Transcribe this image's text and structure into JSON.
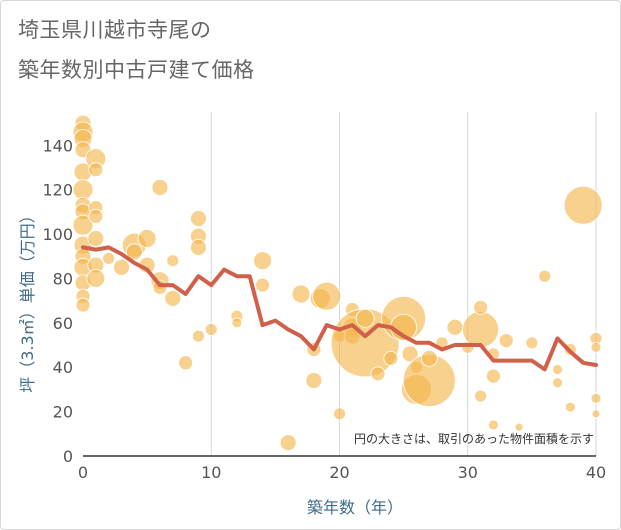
{
  "title_line1": "埼玉県川越市寺尾の",
  "title_line2": "築年数別中古戸建て価格",
  "chart_data": {
    "type": "scatter",
    "xlabel": "築年数（年）",
    "ylabel": "坪（3.3㎡）単価（万円）",
    "xlim": [
      0,
      40
    ],
    "ylim": [
      0,
      155
    ],
    "xticks": [
      0,
      10,
      20,
      30,
      40
    ],
    "yticks": [
      0,
      20,
      40,
      60,
      80,
      100,
      120,
      140
    ],
    "grid": true,
    "annotation": "円の大きさは、取引のあった物件面積を示す",
    "colors": {
      "bubble": "#f3b44a",
      "line": "#d0604a",
      "grid": "#d0d7de"
    },
    "bubbles": [
      {
        "x": 0,
        "y": 150,
        "s": 8
      },
      {
        "x": 0,
        "y": 146,
        "s": 10
      },
      {
        "x": 0,
        "y": 143,
        "s": 9
      },
      {
        "x": 0,
        "y": 138,
        "s": 8
      },
      {
        "x": 0,
        "y": 128,
        "s": 9
      },
      {
        "x": 0,
        "y": 120,
        "s": 10
      },
      {
        "x": 0,
        "y": 113,
        "s": 8
      },
      {
        "x": 0,
        "y": 110,
        "s": 8
      },
      {
        "x": 0,
        "y": 104,
        "s": 10
      },
      {
        "x": 0,
        "y": 95,
        "s": 9
      },
      {
        "x": 0,
        "y": 90,
        "s": 8
      },
      {
        "x": 0,
        "y": 85,
        "s": 9
      },
      {
        "x": 0,
        "y": 78,
        "s": 8
      },
      {
        "x": 0,
        "y": 72,
        "s": 7
      },
      {
        "x": 0,
        "y": 68,
        "s": 7
      },
      {
        "x": 1,
        "y": 134,
        "s": 10
      },
      {
        "x": 1,
        "y": 129,
        "s": 7
      },
      {
        "x": 1,
        "y": 112,
        "s": 7
      },
      {
        "x": 1,
        "y": 108,
        "s": 7
      },
      {
        "x": 1,
        "y": 98,
        "s": 8
      },
      {
        "x": 1,
        "y": 86,
        "s": 8
      },
      {
        "x": 1,
        "y": 80,
        "s": 9
      },
      {
        "x": 2,
        "y": 89,
        "s": 6
      },
      {
        "x": 3,
        "y": 85,
        "s": 8
      },
      {
        "x": 4,
        "y": 95,
        "s": 12
      },
      {
        "x": 4,
        "y": 92,
        "s": 8
      },
      {
        "x": 5,
        "y": 98,
        "s": 9
      },
      {
        "x": 5,
        "y": 86,
        "s": 8
      },
      {
        "x": 6,
        "y": 121,
        "s": 8
      },
      {
        "x": 6,
        "y": 79,
        "s": 9
      },
      {
        "x": 6,
        "y": 76,
        "s": 7
      },
      {
        "x": 7,
        "y": 71,
        "s": 8
      },
      {
        "x": 7,
        "y": 88,
        "s": 6
      },
      {
        "x": 8,
        "y": 42,
        "s": 7
      },
      {
        "x": 9,
        "y": 107,
        "s": 8
      },
      {
        "x": 9,
        "y": 99,
        "s": 8
      },
      {
        "x": 9,
        "y": 94,
        "s": 8
      },
      {
        "x": 9,
        "y": 54,
        "s": 6
      },
      {
        "x": 10,
        "y": 57,
        "s": 6
      },
      {
        "x": 12,
        "y": 63,
        "s": 6
      },
      {
        "x": 12,
        "y": 60,
        "s": 5
      },
      {
        "x": 14,
        "y": 88,
        "s": 9
      },
      {
        "x": 14,
        "y": 77,
        "s": 7
      },
      {
        "x": 16,
        "y": 6,
        "s": 8
      },
      {
        "x": 17,
        "y": 73,
        "s": 9
      },
      {
        "x": 18,
        "y": 34,
        "s": 8
      },
      {
        "x": 18,
        "y": 48,
        "s": 7
      },
      {
        "x": 18.5,
        "y": 71,
        "s": 10
      },
      {
        "x": 19,
        "y": 72,
        "s": 14
      },
      {
        "x": 20,
        "y": 19,
        "s": 6
      },
      {
        "x": 20,
        "y": 54,
        "s": 6
      },
      {
        "x": 21,
        "y": 66,
        "s": 7
      },
      {
        "x": 21,
        "y": 58,
        "s": 9
      },
      {
        "x": 21,
        "y": 54,
        "s": 8
      },
      {
        "x": 22,
        "y": 51,
        "s": 34
      },
      {
        "x": 22,
        "y": 62,
        "s": 9
      },
      {
        "x": 23,
        "y": 37,
        "s": 7
      },
      {
        "x": 24,
        "y": 44,
        "s": 7
      },
      {
        "x": 25,
        "y": 62,
        "s": 22
      },
      {
        "x": 25,
        "y": 58,
        "s": 13
      },
      {
        "x": 25.5,
        "y": 46,
        "s": 8
      },
      {
        "x": 26,
        "y": 30,
        "s": 15
      },
      {
        "x": 26,
        "y": 40,
        "s": 6
      },
      {
        "x": 27,
        "y": 34,
        "s": 26
      },
      {
        "x": 27,
        "y": 44,
        "s": 8
      },
      {
        "x": 28,
        "y": 51,
        "s": 6
      },
      {
        "x": 29,
        "y": 58,
        "s": 8
      },
      {
        "x": 30,
        "y": 49,
        "s": 6
      },
      {
        "x": 31,
        "y": 57,
        "s": 18
      },
      {
        "x": 31,
        "y": 67,
        "s": 7
      },
      {
        "x": 31,
        "y": 27,
        "s": 6
      },
      {
        "x": 32,
        "y": 46,
        "s": 6
      },
      {
        "x": 32,
        "y": 36,
        "s": 7
      },
      {
        "x": 32,
        "y": 14,
        "s": 5
      },
      {
        "x": 33,
        "y": 52,
        "s": 7
      },
      {
        "x": 34,
        "y": 13,
        "s": 4
      },
      {
        "x": 35,
        "y": 51,
        "s": 6
      },
      {
        "x": 36,
        "y": 81,
        "s": 6
      },
      {
        "x": 37,
        "y": 39,
        "s": 5
      },
      {
        "x": 37,
        "y": 33,
        "s": 5
      },
      {
        "x": 38,
        "y": 48,
        "s": 6
      },
      {
        "x": 38,
        "y": 22,
        "s": 5
      },
      {
        "x": 39,
        "y": 113,
        "s": 19
      },
      {
        "x": 40,
        "y": 53,
        "s": 6
      },
      {
        "x": 40,
        "y": 49,
        "s": 5
      },
      {
        "x": 40,
        "y": 26,
        "s": 5
      },
      {
        "x": 40,
        "y": 19,
        "s": 4
      }
    ],
    "series": [
      {
        "x": [
          0,
          1,
          2,
          3,
          4,
          5,
          6,
          7,
          8,
          9,
          10,
          11,
          12,
          13,
          14,
          15,
          16,
          17,
          18,
          19,
          20,
          21,
          22,
          23,
          24,
          25,
          26,
          27,
          28,
          29,
          30,
          31,
          32,
          33,
          34,
          35,
          36,
          37,
          38,
          39,
          40
        ],
        "values": [
          94,
          93,
          94,
          91,
          87,
          84,
          77,
          77,
          73,
          81,
          77,
          84,
          81,
          81,
          59,
          61,
          57,
          54,
          48,
          59,
          57,
          59,
          54,
          59,
          58,
          54,
          51,
          51,
          48,
          50,
          50,
          50,
          43,
          43,
          43,
          43,
          39,
          53,
          47,
          42,
          41
        ]
      }
    ]
  }
}
